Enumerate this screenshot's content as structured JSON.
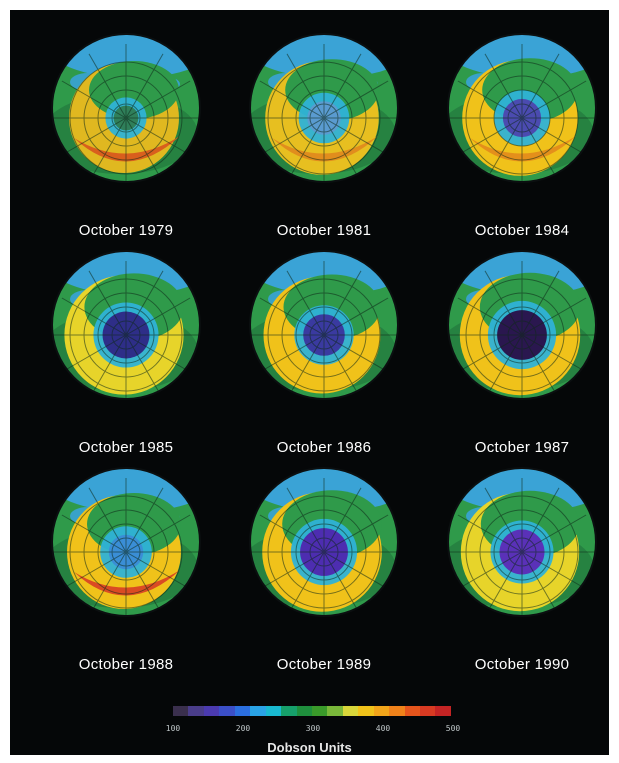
{
  "figure": {
    "panels": [
      {
        "label": "October 1979",
        "hole": 0.1,
        "hole_color": "#2f7f5a",
        "ring_color": "#e0b820",
        "band_color": "#d85a1d"
      },
      {
        "label": "October 1981",
        "hole": 0.28,
        "hole_color": "#5a9bd0",
        "ring_color": "#e7bf20",
        "band_color": "#e08a1d"
      },
      {
        "label": "October 1984",
        "hole": 0.38,
        "hole_color": "#4b4bb0",
        "ring_color": "#f0c21a",
        "band_color": "#e38c1b"
      },
      {
        "label": "October 1985",
        "hole": 0.56,
        "hole_color": "#2e2e88",
        "ring_color": "#e7d42a",
        "band_color": "#e7d42a"
      },
      {
        "label": "October 1986",
        "hole": 0.45,
        "hole_color": "#3a3aa0",
        "ring_color": "#f0c21a",
        "band_color": "#f0c21a"
      },
      {
        "label": "October 1987",
        "hole": 0.62,
        "hole_color": "#2a174f",
        "ring_color": "#f0c21a",
        "band_color": "#f0c21a"
      },
      {
        "label": "October 1988",
        "hole": 0.3,
        "hole_color": "#3a8ed6",
        "ring_color": "#f0c21a",
        "band_color": "#d84424"
      },
      {
        "label": "October 1989",
        "hole": 0.58,
        "hole_color": "#4d2db0",
        "ring_color": "#f0c21a",
        "band_color": "#f0c21a"
      },
      {
        "label": "October 1990",
        "hole": 0.52,
        "hole_color": "#5a31b8",
        "ring_color": "#e7d42a",
        "band_color": "#e7d42a"
      }
    ],
    "colors": {
      "background": "#050708",
      "land_blue": "#3aa3d6",
      "globe_green": "#2f9a4a",
      "globe_dark_green": "#1f6f3a"
    }
  },
  "legend": {
    "ticks": [
      "100",
      "200",
      "300",
      "400",
      "500"
    ],
    "unit_label": "Dobson Units",
    "scale_colors": [
      "#3a2f4d",
      "#4a3d8a",
      "#4b3ab0",
      "#3b4fc8",
      "#2b6fe0",
      "#2aa3e6",
      "#19b9d0",
      "#16a06b",
      "#1f8f3d",
      "#3a9a2a",
      "#7ab83a",
      "#d8d63a",
      "#f0c21a",
      "#f2a51a",
      "#f0821a",
      "#e6551c",
      "#d83a22",
      "#c42424"
    ]
  }
}
